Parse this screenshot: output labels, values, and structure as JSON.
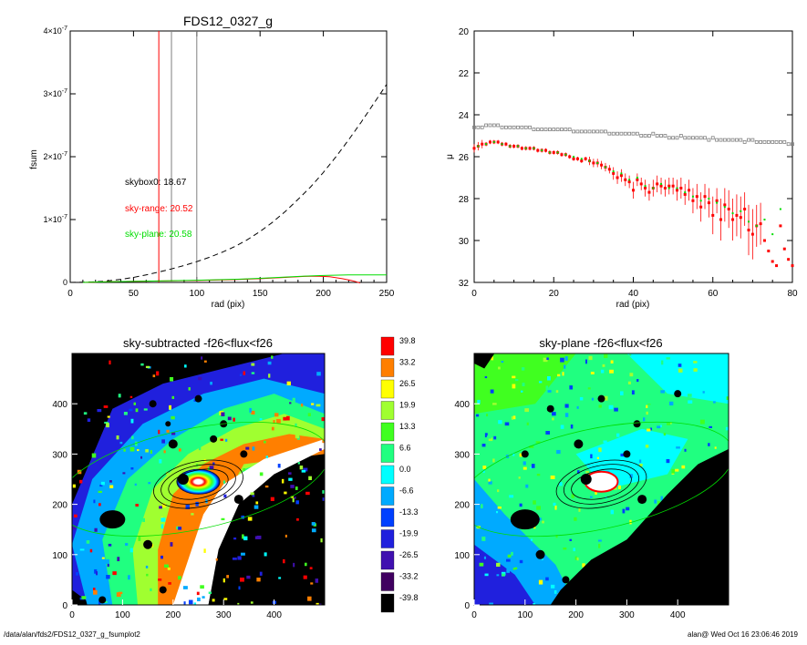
{
  "colors": {
    "red": "#ff0000",
    "green": "#00dd00",
    "gray": "#808080"
  },
  "footer": {
    "left": "/data/alan/fds2/FDS12_0327_g_fsumplot2",
    "right": "alan@  Wed Oct 16 23:06:46 2019"
  },
  "chart_data": [
    {
      "type": "line",
      "title": "FDS12_0327_g",
      "xlabel": "rad (pix)",
      "ylabel": "fsum",
      "xlim": [
        0,
        250
      ],
      "ylim": [
        0,
        4e-07
      ],
      "x_ticks": [
        "0",
        "50",
        "100",
        "150",
        "200",
        "250"
      ],
      "y_ticks": [
        {
          "base": "0",
          "exp": ""
        },
        {
          "base": "1×10",
          "exp": "-7"
        },
        {
          "base": "2×10",
          "exp": "-7"
        },
        {
          "base": "3×10",
          "exp": "-7"
        },
        {
          "base": "4×10",
          "exp": "-7"
        }
      ],
      "vlines": [
        {
          "x": 70,
          "color": "red"
        },
        {
          "x": 80,
          "color": "gray"
        },
        {
          "x": 100,
          "color": "gray"
        }
      ],
      "annotations": [
        {
          "label": "skybox0:",
          "value": "18.67",
          "color": "black"
        },
        {
          "label": "sky-range:",
          "value": "20.52",
          "color": "red"
        },
        {
          "label": "sky-plane:",
          "value": "20.58",
          "color": "green"
        }
      ],
      "series": [
        {
          "style": "dashed-black",
          "x": [
            0,
            10,
            20,
            30,
            40,
            50,
            60,
            70,
            80,
            90,
            100,
            110,
            120,
            130,
            140,
            150,
            160,
            170,
            180,
            190,
            200,
            210,
            220,
            230,
            240,
            250
          ],
          "y": [
            0,
            3e-10,
            1e-09,
            2.5e-09,
            5e-09,
            8e-09,
            1.2e-08,
            1.65e-08,
            2.15e-08,
            2.7e-08,
            3.3e-08,
            4e-08,
            4.8e-08,
            5.7e-08,
            6.8e-08,
            8.1e-08,
            9.6e-08,
            1.13e-07,
            1.32e-07,
            1.52e-07,
            1.75e-07,
            2e-07,
            2.27e-07,
            2.55e-07,
            2.85e-07,
            3.15e-07
          ]
        },
        {
          "style": "red",
          "x": [
            10,
            30,
            60,
            100,
            130,
            150,
            170,
            185,
            195,
            205,
            215,
            222,
            226,
            229
          ],
          "y": [
            0,
            1e-09,
            2e-09,
            3e-09,
            4.5e-09,
            6e-09,
            8e-09,
            9.5e-09,
            1e-08,
            9e-09,
            6e-09,
            3e-09,
            1e-09,
            -1e-09
          ]
        },
        {
          "style": "green",
          "x": [
            10,
            30,
            60,
            100,
            130,
            150,
            170,
            185,
            200,
            220,
            250
          ],
          "y": [
            0,
            1e-09,
            2e-09,
            3.5e-09,
            5e-09,
            6.5e-09,
            8.5e-09,
            1e-08,
            1.1e-08,
            1.2e-08,
            1.2e-08
          ]
        }
      ]
    },
    {
      "type": "scatter",
      "xlabel": "rad (pix)",
      "ylabel": "μ",
      "xlim": [
        0,
        80
      ],
      "ylim": [
        32,
        20
      ],
      "x_ticks": [
        "0",
        "20",
        "40",
        "60",
        "80"
      ],
      "y_ticks": [
        "20",
        "22",
        "24",
        "26",
        "28",
        "30",
        "32"
      ],
      "series": [
        {
          "style": "gray-squares",
          "x": [
            0,
            1,
            2,
            3,
            4,
            5,
            6,
            7,
            8,
            9,
            10,
            11,
            12,
            13,
            14,
            15,
            16,
            17,
            18,
            19,
            20,
            21,
            22,
            23,
            24,
            25,
            26,
            27,
            28,
            29,
            30,
            31,
            32,
            33,
            34,
            35,
            36,
            37,
            38,
            39,
            40,
            41,
            42,
            43,
            44,
            45,
            46,
            47,
            48,
            49,
            50,
            51,
            52,
            53,
            54,
            55,
            56,
            57,
            58,
            59,
            60,
            61,
            62,
            63,
            64,
            65,
            66,
            67,
            68,
            69,
            70,
            71,
            72,
            73,
            74,
            75,
            76,
            77,
            78,
            79,
            80
          ],
          "y": [
            24.6,
            24.6,
            24.6,
            24.5,
            24.5,
            24.5,
            24.5,
            24.6,
            24.6,
            24.6,
            24.6,
            24.6,
            24.6,
            24.6,
            24.6,
            24.7,
            24.7,
            24.7,
            24.7,
            24.7,
            24.7,
            24.7,
            24.7,
            24.7,
            24.7,
            24.8,
            24.8,
            24.8,
            24.8,
            24.8,
            24.8,
            24.8,
            24.8,
            24.8,
            24.9,
            24.9,
            24.9,
            24.9,
            24.9,
            24.9,
            24.9,
            24.9,
            25.0,
            25.0,
            25.0,
            24.9,
            25.0,
            25.0,
            25.0,
            25.1,
            25.1,
            25.1,
            25.0,
            25.1,
            25.1,
            25.1,
            25.1,
            25.1,
            25.1,
            25.2,
            25.1,
            25.2,
            25.2,
            25.2,
            25.2,
            25.2,
            25.2,
            25.2,
            25.3,
            25.2,
            25.2,
            25.3,
            25.3,
            25.3,
            25.3,
            25.3,
            25.3,
            25.3,
            25.3,
            25.4,
            25.4
          ]
        },
        {
          "style": "red-errorbars",
          "x": [
            0,
            1,
            2,
            3,
            4,
            5,
            6,
            7,
            8,
            9,
            10,
            11,
            12,
            13,
            14,
            15,
            16,
            17,
            18,
            19,
            20,
            21,
            22,
            23,
            24,
            25,
            26,
            27,
            28,
            29,
            30,
            31,
            32,
            33,
            34,
            35,
            36,
            37,
            38,
            39,
            40,
            41,
            42,
            43,
            44,
            45,
            46,
            47,
            48,
            49,
            50,
            51,
            52,
            53,
            54,
            55,
            56,
            57,
            58,
            59,
            60,
            61,
            62,
            63,
            64,
            65,
            66,
            67,
            68,
            69,
            70,
            71,
            72,
            73,
            74,
            75,
            76,
            77,
            78,
            79,
            80
          ],
          "y": [
            25.6,
            25.5,
            25.4,
            25.4,
            25.3,
            25.3,
            25.3,
            25.4,
            25.4,
            25.5,
            25.5,
            25.5,
            25.6,
            25.6,
            25.6,
            25.6,
            25.7,
            25.7,
            25.7,
            25.8,
            25.8,
            25.8,
            25.9,
            25.9,
            26.0,
            26.1,
            26.1,
            26.2,
            26.1,
            26.2,
            26.3,
            26.3,
            26.4,
            26.5,
            26.6,
            26.8,
            27.0,
            26.9,
            27.1,
            27.2,
            27.6,
            27.1,
            27.3,
            27.5,
            27.7,
            27.5,
            27.3,
            27.4,
            27.5,
            27.4,
            27.4,
            27.6,
            27.5,
            27.8,
            27.6,
            28.1,
            27.9,
            28.4,
            27.9,
            28.2,
            28.8,
            28.1,
            29.0,
            28.3,
            28.5,
            29.0,
            28.8,
            28.9,
            28.5,
            29.5,
            29.7,
            29.3,
            29.2,
            30.0,
            30.5,
            31.0,
            31.2,
            29.3,
            30.4,
            30.9,
            31.2
          ],
          "err": [
            0.2,
            0.2,
            0.2,
            0.1,
            0.1,
            0.1,
            0.1,
            0.1,
            0.1,
            0.1,
            0.1,
            0.1,
            0.1,
            0.1,
            0.1,
            0.1,
            0.1,
            0.1,
            0.1,
            0.1,
            0.1,
            0.1,
            0.1,
            0.1,
            0.1,
            0.1,
            0.1,
            0.1,
            0.1,
            0.2,
            0.2,
            0.2,
            0.2,
            0.2,
            0.2,
            0.3,
            0.3,
            0.3,
            0.3,
            0.3,
            0.4,
            0.3,
            0.3,
            0.4,
            0.4,
            0.4,
            0.4,
            0.4,
            0.4,
            0.4,
            0.4,
            0.5,
            0.5,
            0.5,
            0.5,
            0.6,
            0.6,
            0.7,
            0.6,
            0.7,
            0.9,
            0.6,
            1.0,
            0.8,
            0.9,
            1.0,
            1.0,
            1.0,
            0.8,
            1.2,
            1.2,
            1.0,
            1.0,
            0.0,
            0.0,
            0.0,
            0.0,
            0.0,
            0.0,
            0.0,
            0.0
          ]
        },
        {
          "style": "green-points",
          "x": [
            1,
            3,
            5,
            7,
            9,
            11,
            13,
            15,
            17,
            19,
            21,
            23,
            25,
            27,
            29,
            31,
            33,
            35,
            37,
            39,
            41,
            43,
            45,
            47,
            49,
            51,
            53,
            55,
            57,
            59,
            61,
            63,
            65,
            67,
            69,
            71,
            73,
            75,
            77
          ],
          "y": [
            25.5,
            25.4,
            25.3,
            25.4,
            25.5,
            25.5,
            25.6,
            25.6,
            25.7,
            25.8,
            25.8,
            25.9,
            26.0,
            26.1,
            26.2,
            26.3,
            26.5,
            26.7,
            26.8,
            27.1,
            27.0,
            27.4,
            27.5,
            27.3,
            27.5,
            27.5,
            27.7,
            27.9,
            28.1,
            28.0,
            28.2,
            28.4,
            28.7,
            28.6,
            29.1,
            29.3,
            29.0,
            29.7,
            28.5
          ]
        }
      ]
    },
    {
      "type": "heatmap",
      "title": "sky-subtracted -f26<flux<f26",
      "xlim": [
        0,
        500
      ],
      "ylim": [
        0,
        500
      ],
      "x_ticks": [
        "0",
        "100",
        "200",
        "300",
        "400"
      ],
      "y_ticks": [
        "0",
        "100",
        "200",
        "300",
        "400"
      ],
      "ellipses": [
        {
          "cx": 240,
          "cy": 250,
          "rx": 275,
          "ry": 100,
          "color": "green"
        },
        {
          "cx": 250,
          "cy": 240,
          "rx": 90,
          "ry": 45,
          "color": "black"
        },
        {
          "cx": 250,
          "cy": 240,
          "rx": 75,
          "ry": 37,
          "color": "black"
        },
        {
          "cx": 250,
          "cy": 240,
          "rx": 60,
          "ry": 28,
          "color": "black"
        }
      ]
    },
    {
      "type": "heatmap",
      "title": "sky-plane -f26<flux<f26",
      "xlim": [
        0,
        500
      ],
      "ylim": [
        0,
        500
      ],
      "x_ticks": [
        "0",
        "100",
        "200",
        "300",
        "400"
      ],
      "y_ticks": [
        "0",
        "100",
        "200",
        "300",
        "400"
      ],
      "ellipses": [
        {
          "cx": 240,
          "cy": 250,
          "rx": 275,
          "ry": 100,
          "color": "green"
        },
        {
          "cx": 250,
          "cy": 240,
          "rx": 90,
          "ry": 45,
          "color": "black"
        },
        {
          "cx": 250,
          "cy": 240,
          "rx": 75,
          "ry": 37,
          "color": "black"
        },
        {
          "cx": 250,
          "cy": 240,
          "rx": 60,
          "ry": 28,
          "color": "black"
        }
      ]
    }
  ],
  "colorbar": {
    "labels": [
      "39.8",
      "33.2",
      "26.5",
      "19.9",
      "13.3",
      "6.6",
      "0.0",
      "-6.6",
      "-13.3",
      "-19.9",
      "-26.5",
      "-33.2",
      "-39.8"
    ],
    "colors": [
      "#ff0000",
      "#ff7f00",
      "#ffff00",
      "#a0ff30",
      "#40ff20",
      "#20ff80",
      "#00ffff",
      "#00aaff",
      "#0040ff",
      "#2020dd",
      "#4010b0",
      "#400060",
      "#000000"
    ]
  }
}
